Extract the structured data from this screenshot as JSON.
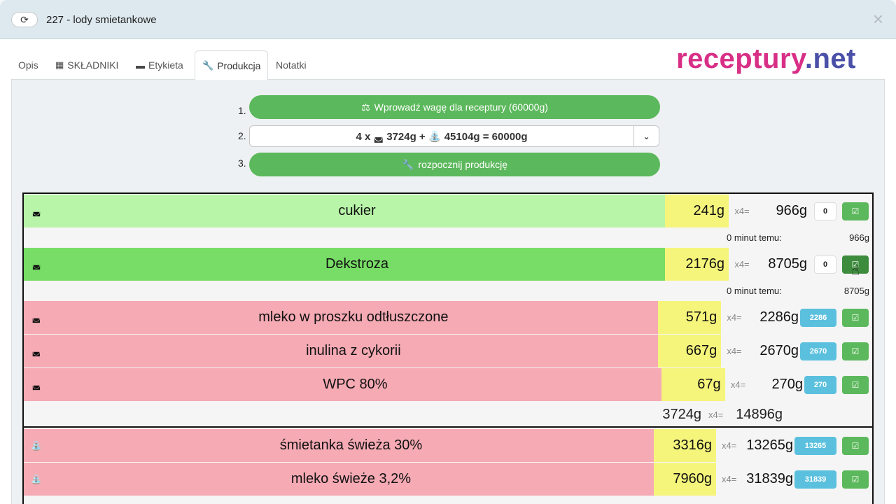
{
  "window": {
    "title": "227 - lody smietankowe",
    "refresh_icon": "refresh-icon",
    "close_icon": "×"
  },
  "logo": {
    "part1": "receptury",
    "part2": ".net",
    "color1": "#d82f86",
    "color2": "#4a4fa8"
  },
  "tabs": [
    {
      "label": "Opis",
      "icon": ""
    },
    {
      "label": "SKŁADNIKI",
      "icon": "calculator-icon"
    },
    {
      "label": "Etykieta",
      "icon": "label-icon"
    },
    {
      "label": "Produkcja",
      "icon": "wrench-icon",
      "active": true
    },
    {
      "label": "Notatki",
      "icon": ""
    }
  ],
  "steps": {
    "n1": "1.",
    "n2": "2.",
    "n3": "3.",
    "weigh_button": "Wprowadź wagę dla receptury (60000g)",
    "batch_select": "4 x 3724g + 45104g = 60000g",
    "batch_part1": "4 x",
    "batch_part2": "3724g +",
    "batch_part3": "45104g = 60000g",
    "start_button": "rozpocznij produkcję"
  },
  "colors": {
    "green": "#5cb85c",
    "light_green": "#b8f5a8",
    "done_green": "#77dd66",
    "red": "#f5aab4",
    "yellow": "#f5f57c",
    "badge_blue": "#5bc0de"
  },
  "ingredients": [
    {
      "name": "cukier",
      "weight": "241g",
      "mult": "x4=",
      "total": "966g",
      "state": "done-light",
      "counter": "0",
      "sub_label": "0 minut temu:",
      "sub_amount": "966g"
    },
    {
      "name": "Dekstroza",
      "weight": "2176g",
      "mult": "x4=",
      "total": "8705g",
      "state": "done",
      "counter": "0",
      "sub_label": "0 minut temu:",
      "sub_amount": "8705g"
    },
    {
      "name": "mleko w proszku odtłuszczone",
      "weight": "571g",
      "mult": "x4=",
      "total": "2286g",
      "state": "pending",
      "badge": "2286"
    },
    {
      "name": "inulina z cykorii",
      "weight": "667g",
      "mult": "x4=",
      "total": "2670g",
      "state": "pending",
      "badge": "2670"
    },
    {
      "name": "WPC 80%",
      "weight": "67g",
      "mult": "x4=",
      "total": "270g",
      "state": "pending",
      "badge": "270"
    }
  ],
  "dry_sum": {
    "weight": "3724g",
    "mult": "x4=",
    "total": "14896g"
  },
  "liquids": [
    {
      "name": "śmietanka świeża 30%",
      "weight": "3316g",
      "mult": "x4=",
      "total": "13265g",
      "state": "pending",
      "badge": "13265"
    },
    {
      "name": "mleko świeże 3,2%",
      "weight": "7960g",
      "mult": "x4=",
      "total": "31839g",
      "state": "pending",
      "badge": "31839"
    }
  ]
}
